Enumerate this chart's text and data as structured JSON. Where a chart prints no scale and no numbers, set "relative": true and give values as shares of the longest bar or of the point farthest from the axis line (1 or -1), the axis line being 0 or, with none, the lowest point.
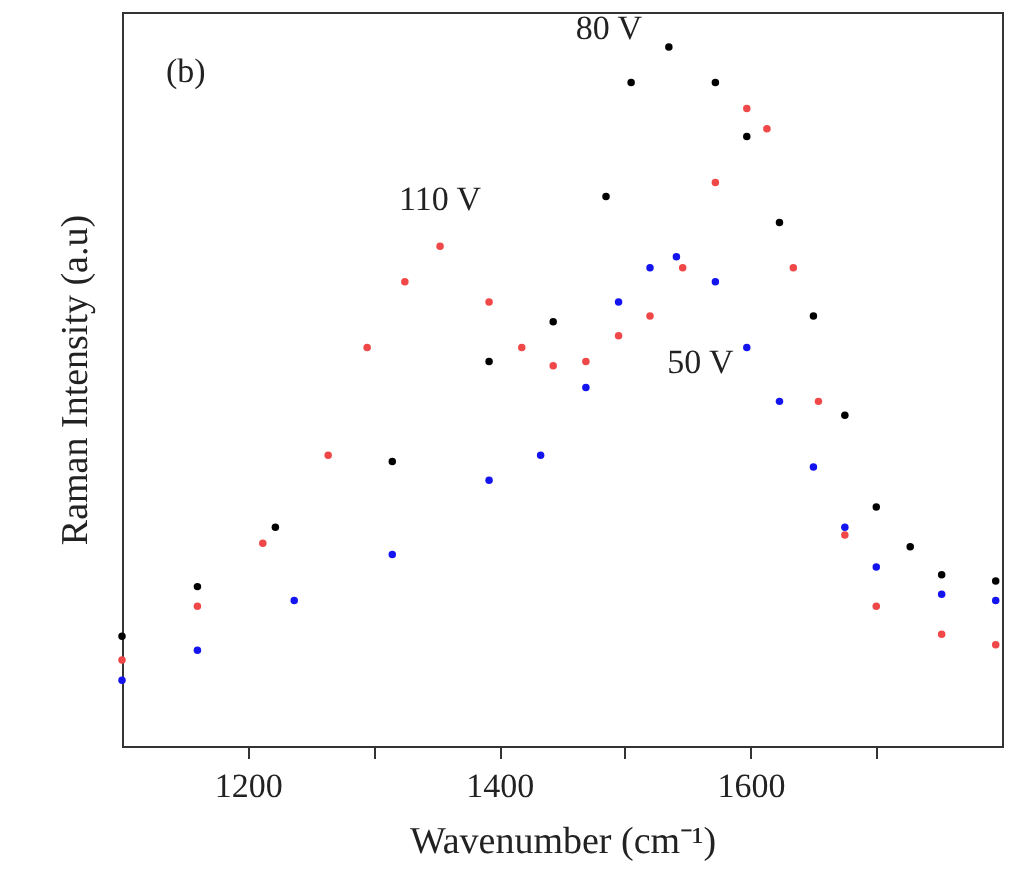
{
  "chart_data": {
    "type": "scatter",
    "xlabel": "Wavenumber (cm⁻¹)",
    "ylabel": "Raman Intensity (a.u)",
    "relative": true,
    "marker": "circle",
    "grid": false,
    "xlim": [
      1100,
      1800
    ],
    "xticks": [
      1200,
      {
        "value": 1300,
        "label": null
      },
      1400,
      {
        "value": 1500,
        "label": null
      },
      1600,
      {
        "value": 1700,
        "label": null
      }
    ],
    "annotations": [
      "(b)"
    ],
    "series": [
      {
        "name": "80 V",
        "color": "#000000",
        "x": [
          1100,
          1160,
          1222,
          1315,
          1392,
          1443,
          1485,
          1505,
          1535,
          1572,
          1597,
          1623,
          1650,
          1675,
          1700,
          1727,
          1752,
          1795
        ],
        "values": [
          0.157,
          0.228,
          0.313,
          0.407,
          0.55,
          0.607,
          0.786,
          0.949,
          1.0,
          0.949,
          0.872,
          0.749,
          0.615,
          0.473,
          0.342,
          0.285,
          0.245,
          0.236
        ]
      },
      {
        "name": "110 V",
        "color": "#f04848",
        "x": [
          1100,
          1160,
          1212,
          1264,
          1295,
          1325,
          1353,
          1392,
          1418,
          1443,
          1469,
          1495,
          1520,
          1546,
          1572,
          1597,
          1613,
          1634,
          1654,
          1675,
          1700,
          1752,
          1795
        ],
        "values": [
          0.123,
          0.2,
          0.29,
          0.416,
          0.57,
          0.664,
          0.715,
          0.635,
          0.57,
          0.544,
          0.55,
          0.587,
          0.615,
          0.684,
          0.806,
          0.912,
          0.883,
          0.684,
          0.493,
          0.302,
          0.2,
          0.16,
          0.145
        ]
      },
      {
        "name": "50 V",
        "color": "#1414f0",
        "x": [
          1100,
          1160,
          1237,
          1315,
          1392,
          1433,
          1469,
          1495,
          1520,
          1541,
          1572,
          1597,
          1623,
          1650,
          1675,
          1700,
          1752,
          1795
        ],
        "values": [
          0.094,
          0.137,
          0.208,
          0.274,
          0.38,
          0.416,
          0.513,
          0.635,
          0.684,
          0.7,
          0.664,
          0.57,
          0.493,
          0.399,
          0.313,
          0.256,
          0.217,
          0.208
        ]
      }
    ]
  }
}
